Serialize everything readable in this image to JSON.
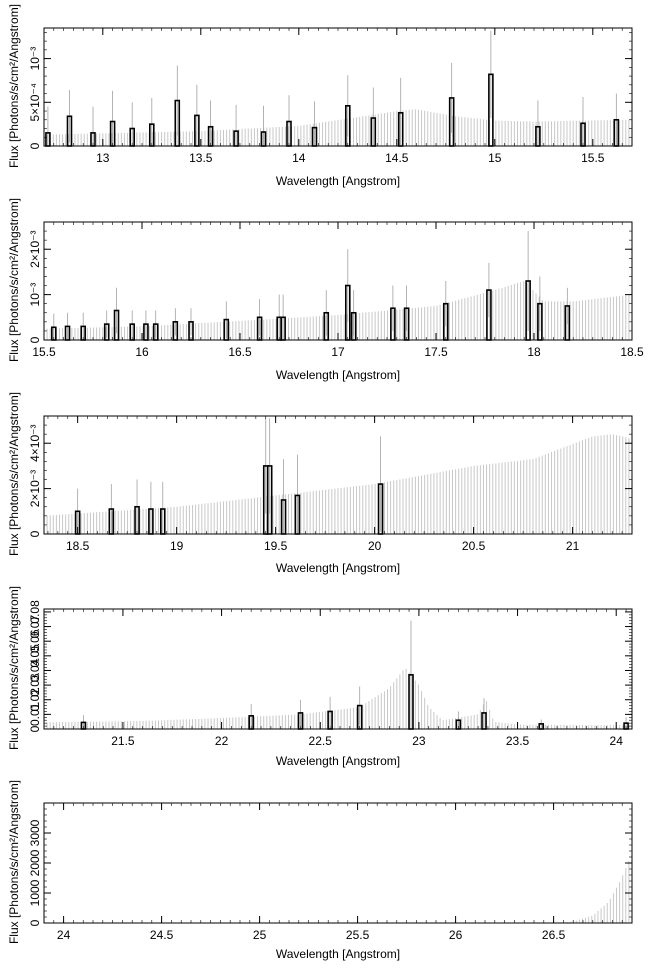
{
  "figure": {
    "ylabel": "Flux [Photons/s/cm²/Angstrom]",
    "xlabel": "Wavelength [Angstrom]",
    "colors": {
      "frame": "#000000",
      "model": "#c8c8c8",
      "data": "#000000",
      "errorbar": "#a0a0a0"
    }
  },
  "chart_data": [
    {
      "type": "bar",
      "panel": 1,
      "xlabel": "Wavelength [Angstrom]",
      "ylabel": "Flux [Photons/s/cm²/Angstrom]",
      "xlim": [
        12.7,
        15.7
      ],
      "ylim": [
        0,
        0.00135
      ],
      "x_ticks": [
        13,
        13.5,
        14,
        14.5,
        15,
        15.5
      ],
      "x_tick_labels": [
        "13",
        "13.5",
        "14",
        "14.5",
        "15",
        "15.5"
      ],
      "y_ticks": [
        0,
        0.0005,
        0.001
      ],
      "y_tick_labels": [
        "0",
        "5×10⁻⁴",
        "10⁻³"
      ],
      "model": {
        "x": [
          12.7,
          13.5,
          14.0,
          14.3,
          14.5,
          14.6,
          14.8,
          15.0,
          15.2,
          15.7
        ],
        "y": [
          0.00013,
          0.00017,
          0.00023,
          0.00033,
          0.0004,
          0.00042,
          0.00034,
          0.00029,
          0.00028,
          0.0003
        ]
      },
      "data": {
        "x": [
          12.72,
          12.83,
          12.95,
          13.05,
          13.15,
          13.25,
          13.38,
          13.48,
          13.55,
          13.68,
          13.82,
          13.95,
          14.08,
          14.25,
          14.38,
          14.52,
          14.78,
          14.98,
          15.22,
          15.45,
          15.62
        ],
        "y": [
          0.00015,
          0.00034,
          0.00015,
          0.00028,
          0.0002,
          0.00025,
          0.00052,
          0.00035,
          0.00022,
          0.00017,
          0.00016,
          0.00028,
          0.00021,
          0.00046,
          0.00032,
          0.00038,
          0.00055,
          0.00082,
          0.00022,
          0.00026,
          0.0003
        ],
        "yerr": [
          0.0003,
          0.0003,
          0.0003,
          0.00035,
          0.0003,
          0.0003,
          0.0004,
          0.00035,
          0.0003,
          0.0003,
          0.0003,
          0.0003,
          0.0003,
          0.00035,
          0.00035,
          0.0004,
          0.0004,
          0.0005,
          0.0003,
          0.0003,
          0.0003
        ]
      }
    },
    {
      "type": "bar",
      "panel": 2,
      "xlabel": "Wavelength [Angstrom]",
      "ylabel": "Flux [Photons/s/cm²/Angstrom]",
      "xlim": [
        15.5,
        18.5
      ],
      "ylim": [
        0,
        0.0026
      ],
      "x_ticks": [
        15.5,
        16,
        16.5,
        17,
        17.5,
        18,
        18.5
      ],
      "x_tick_labels": [
        "15.5",
        "16",
        "16.5",
        "17",
        "17.5",
        "18",
        "18.5"
      ],
      "y_ticks": [
        0,
        0.001,
        0.002
      ],
      "y_tick_labels": [
        "0",
        "10⁻³",
        "2×10⁻³"
      ],
      "model": {
        "x": [
          15.5,
          16.0,
          16.5,
          17.0,
          17.5,
          17.8,
          17.95,
          18.05,
          18.2,
          18.5
        ],
        "y": [
          0.00025,
          0.0003,
          0.00042,
          0.00055,
          0.00075,
          0.0011,
          0.0013,
          0.00085,
          0.00085,
          0.001
        ]
      },
      "data": {
        "x": [
          15.55,
          15.62,
          15.7,
          15.82,
          15.87,
          15.95,
          16.02,
          16.07,
          16.17,
          16.25,
          16.43,
          16.6,
          16.7,
          16.72,
          16.94,
          17.05,
          17.08,
          17.28,
          17.35,
          17.55,
          17.77,
          17.97,
          18.03,
          18.17
        ],
        "y": [
          0.00028,
          0.0003,
          0.0003,
          0.00035,
          0.00065,
          0.00035,
          0.00035,
          0.00035,
          0.0004,
          0.0004,
          0.00045,
          0.0005,
          0.0005,
          0.0005,
          0.0006,
          0.0012,
          0.0006,
          0.0007,
          0.0007,
          0.0008,
          0.0011,
          0.0013,
          0.0008,
          0.00075
        ],
        "yerr": [
          0.0003,
          0.0003,
          0.0003,
          0.0003,
          0.0005,
          0.0003,
          0.0003,
          0.0003,
          0.0003,
          0.0003,
          0.0004,
          0.0004,
          0.0005,
          0.0005,
          0.0005,
          0.0008,
          0.0005,
          0.0005,
          0.0005,
          0.0005,
          0.0006,
          0.0011,
          0.0006,
          0.0004
        ]
      }
    },
    {
      "type": "bar",
      "panel": 3,
      "xlabel": "Wavelength [Angstrom]",
      "ylabel": "Flux [Photons/s/cm²/Angstrom]",
      "xlim": [
        18.33,
        21.3
      ],
      "ylim": [
        0,
        0.0052
      ],
      "x_ticks": [
        18.5,
        19,
        19.5,
        20,
        20.5,
        21
      ],
      "x_tick_labels": [
        "18.5",
        "19",
        "19.5",
        "20",
        "20.5",
        "21"
      ],
      "y_ticks": [
        0,
        0.002,
        0.004
      ],
      "y_tick_labels": [
        "0",
        "2×10⁻³",
        "4×10⁻³"
      ],
      "model": {
        "x": [
          18.33,
          19.0,
          19.5,
          20.0,
          20.5,
          20.8,
          21.1,
          21.2,
          21.3
        ],
        "y": [
          0.0008,
          0.0012,
          0.0017,
          0.0022,
          0.003,
          0.0033,
          0.0043,
          0.0044,
          0.0042
        ]
      },
      "data": {
        "x": [
          18.5,
          18.67,
          18.8,
          18.87,
          18.93,
          19.45,
          19.47,
          19.54,
          19.61,
          20.03
        ],
        "y": [
          0.001,
          0.0011,
          0.0012,
          0.0011,
          0.0011,
          0.003,
          0.003,
          0.0015,
          0.0017,
          0.0022
        ],
        "yerr": [
          0.001,
          0.0011,
          0.0012,
          0.0012,
          0.0012,
          0.0021,
          0.0021,
          0.0018,
          0.0018,
          0.0021
        ]
      }
    },
    {
      "type": "bar",
      "panel": 4,
      "xlabel": "Wavelength [Angstrom]",
      "ylabel": "Flux [Photons/s/cm²/Angstrom]",
      "xlim": [
        21.1,
        24.08
      ],
      "ylim": [
        0,
        0.082
      ],
      "x_ticks": [
        21.5,
        22,
        22.5,
        23,
        23.5,
        24
      ],
      "x_tick_labels": [
        "21.5",
        "22",
        "22.5",
        "23",
        "23.5",
        "24"
      ],
      "y_ticks": [
        0,
        0.01,
        0.02,
        0.03,
        0.04,
        0.05,
        0.06,
        0.07,
        0.08
      ],
      "y_tick_labels": [
        "0",
        "0.01",
        "0.02",
        "0.03",
        "0.04",
        "0.05",
        "0.06",
        "0.07",
        "0.08"
      ],
      "model": {
        "x": [
          21.1,
          21.6,
          22.0,
          22.4,
          22.7,
          22.85,
          22.93,
          23.0,
          23.05,
          23.12,
          23.3,
          23.34,
          23.38,
          23.5,
          24.08
        ],
        "y": [
          0.0045,
          0.0055,
          0.0075,
          0.01,
          0.015,
          0.028,
          0.042,
          0.03,
          0.015,
          0.006,
          0.01,
          0.02,
          0.005,
          0.003,
          0.0025
        ]
      },
      "data": {
        "x": [
          21.3,
          22.15,
          22.4,
          22.55,
          22.7,
          22.96,
          23.2,
          23.33,
          23.62,
          24.05
        ],
        "y": [
          0.0045,
          0.009,
          0.011,
          0.012,
          0.016,
          0.037,
          0.006,
          0.011,
          0.0035,
          0.004
        ],
        "yerr": [
          0.005,
          0.008,
          0.009,
          0.01,
          0.013,
          0.037,
          0.006,
          0.01,
          0.003,
          0.004
        ]
      }
    },
    {
      "type": "bar",
      "panel": 5,
      "xlabel": "Wavelength [Angstrom]",
      "ylabel": "Flux [Photons/s/cm²/Angstrom]",
      "xlim": [
        23.9,
        26.9
      ],
      "ylim": [
        0,
        4000
      ],
      "x_ticks": [
        24,
        24.5,
        25,
        25.5,
        26,
        26.5
      ],
      "x_tick_labels": [
        "24",
        "24.5",
        "25",
        "25.5",
        "26",
        "26.5"
      ],
      "y_ticks": [
        0,
        1000,
        2000,
        3000
      ],
      "y_tick_labels": [
        "0",
        "1000",
        "2000",
        "3000"
      ],
      "model": {
        "x": [
          23.9,
          26.5,
          26.6,
          26.7,
          26.78,
          26.84,
          26.9
        ],
        "y": [
          0,
          0,
          50,
          250,
          700,
          1400,
          2300
        ]
      },
      "data": {
        "x": [],
        "y": [],
        "yerr": []
      }
    }
  ]
}
